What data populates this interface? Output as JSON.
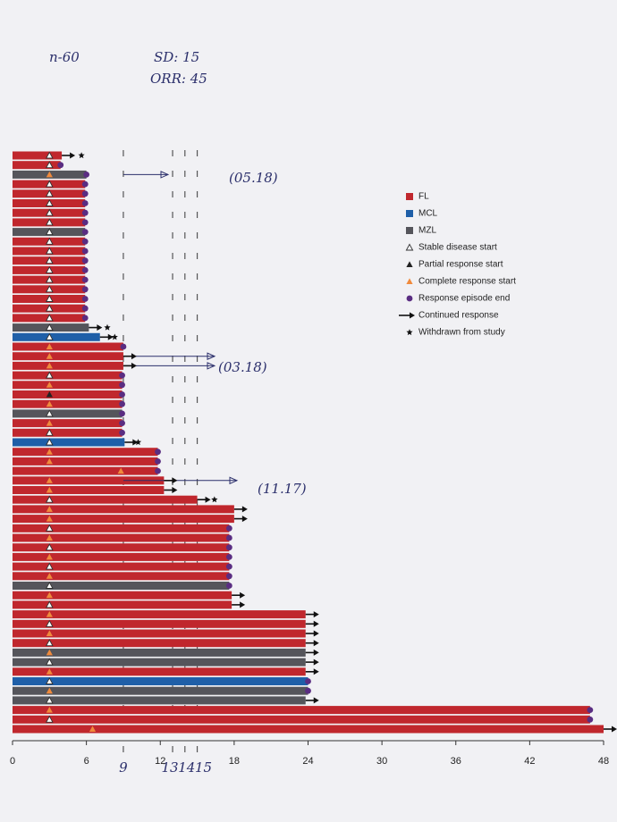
{
  "chart_data": {
    "type": "swimmer",
    "xlim": [
      0,
      48
    ],
    "xticks": [
      0,
      6,
      12,
      18,
      24,
      30,
      36,
      42,
      48
    ],
    "grid": false,
    "legend": "upper right",
    "series": [
      {
        "name": "FL",
        "color": "#c0272d",
        "values": [
          4,
          3.9,
          null,
          5.9,
          5.9,
          5.9,
          5.9,
          5.9,
          null,
          5.9,
          5.9,
          5.9,
          5.9,
          5.9,
          5.9,
          5.9,
          5.9,
          5.9,
          null,
          null,
          9,
          9,
          9,
          8.9,
          8.9,
          8.9,
          8.9,
          null,
          8.9,
          8.9,
          null,
          11.8,
          11.8,
          11.8,
          12.3,
          12.3,
          15,
          18,
          18,
          17.6,
          17.6,
          17.6,
          17.6,
          17.6,
          17.6,
          null,
          17.8,
          17.8,
          23.8,
          23.8,
          23.8,
          23.8,
          null,
          null,
          23.8,
          null,
          null,
          null,
          46.9,
          46.9,
          48
        ]
      },
      {
        "name": "MCL",
        "color": "#1f5fa8",
        "values": [
          null,
          null,
          null,
          null,
          null,
          null,
          null,
          null,
          null,
          null,
          null,
          null,
          null,
          null,
          null,
          null,
          null,
          null,
          null,
          7.1,
          null,
          null,
          null,
          null,
          null,
          null,
          null,
          null,
          null,
          null,
          9.1,
          null,
          null,
          null,
          null,
          null,
          null,
          null,
          null,
          null,
          null,
          null,
          null,
          null,
          null,
          null,
          null,
          null,
          null,
          null,
          null,
          null,
          null,
          null,
          null,
          24,
          null,
          null,
          null,
          null,
          null
        ]
      },
      {
        "name": "MZL",
        "color": "#55555b",
        "values": [
          null,
          null,
          6,
          null,
          null,
          null,
          null,
          null,
          5.9,
          null,
          null,
          null,
          null,
          null,
          null,
          null,
          null,
          null,
          6.2,
          null,
          null,
          null,
          null,
          null,
          null,
          null,
          null,
          8.9,
          null,
          null,
          null,
          null,
          null,
          null,
          null,
          null,
          null,
          null,
          null,
          null,
          null,
          null,
          null,
          null,
          null,
          17.6,
          null,
          null,
          null,
          null,
          null,
          null,
          23.8,
          23.8,
          null,
          null,
          24,
          23.8,
          null,
          null,
          null
        ]
      }
    ],
    "markers": [
      {
        "name": "Stable disease start",
        "symbol": "triangle-open",
        "color": "#ffffff",
        "x": [
          3,
          3,
          null,
          3,
          3,
          3,
          3,
          3,
          3,
          3,
          3,
          3,
          3,
          3,
          3,
          3,
          3,
          3,
          3,
          3,
          null,
          null,
          null,
          3,
          null,
          null,
          null,
          3,
          null,
          3,
          3,
          null,
          null,
          null,
          null,
          null,
          3,
          null,
          null,
          3,
          null,
          3,
          null,
          3,
          null,
          3,
          null,
          3,
          null,
          3,
          null,
          3,
          null,
          3,
          null,
          3,
          null,
          3,
          null,
          3,
          null
        ]
      },
      {
        "name": "Partial response start",
        "symbol": "triangle",
        "color": "#222222",
        "x": [
          null,
          null,
          null,
          null,
          null,
          null,
          null,
          null,
          null,
          null,
          null,
          null,
          null,
          null,
          null,
          null,
          null,
          null,
          null,
          null,
          null,
          null,
          null,
          null,
          null,
          3,
          null,
          null,
          null,
          null,
          null,
          null,
          null,
          null,
          null,
          null,
          null,
          null,
          null,
          null,
          null,
          null,
          null,
          null,
          null,
          null,
          null,
          null,
          null,
          null,
          null,
          null,
          null,
          null,
          null,
          null,
          null,
          null,
          null,
          null,
          null
        ]
      },
      {
        "name": "Complete response start",
        "symbol": "triangle",
        "color": "#f08a3c",
        "x": [
          null,
          null,
          3,
          null,
          null,
          null,
          null,
          null,
          null,
          null,
          null,
          null,
          null,
          null,
          null,
          null,
          null,
          null,
          null,
          null,
          3,
          3,
          3,
          null,
          3,
          null,
          3,
          null,
          3,
          null,
          null,
          3,
          3,
          8.8,
          3,
          3,
          null,
          3,
          3,
          null,
          3,
          null,
          3,
          null,
          3,
          null,
          3,
          null,
          3,
          null,
          3,
          null,
          3,
          null,
          3,
          null,
          3,
          null,
          3,
          null,
          6.5
        ]
      },
      {
        "name": "Response episode end",
        "symbol": "circle",
        "color": "#5a2d82",
        "x": [
          null,
          3.9,
          6,
          5.9,
          5.9,
          5.9,
          5.9,
          5.9,
          5.9,
          5.9,
          5.9,
          5.9,
          5.9,
          5.9,
          5.9,
          5.9,
          5.9,
          5.9,
          null,
          null,
          9,
          null,
          null,
          8.9,
          8.9,
          8.9,
          8.9,
          8.9,
          8.9,
          8.9,
          null,
          11.8,
          11.8,
          11.8,
          null,
          null,
          null,
          null,
          null,
          17.6,
          17.6,
          17.6,
          17.6,
          17.6,
          17.6,
          17.6,
          null,
          null,
          null,
          null,
          null,
          null,
          null,
          null,
          null,
          24,
          24,
          null,
          46.9,
          46.9,
          null
        ]
      },
      {
        "name": "Continued response",
        "symbol": "arrow",
        "color": "#111111",
        "x": [
          4,
          null,
          null,
          null,
          null,
          null,
          null,
          null,
          null,
          null,
          null,
          null,
          null,
          null,
          null,
          null,
          null,
          null,
          6.2,
          7.1,
          null,
          9,
          9,
          null,
          null,
          null,
          null,
          null,
          null,
          null,
          9.1,
          null,
          null,
          null,
          12.3,
          12.3,
          15,
          18,
          18,
          null,
          null,
          null,
          null,
          null,
          null,
          null,
          17.8,
          17.8,
          23.8,
          23.8,
          23.8,
          23.8,
          23.8,
          23.8,
          23.8,
          null,
          null,
          23.8,
          null,
          null,
          48
        ]
      },
      {
        "name": "Withdrawn from study",
        "symbol": "star",
        "color": "#111111",
        "x": [
          5.6,
          null,
          null,
          null,
          null,
          null,
          null,
          null,
          null,
          null,
          null,
          null,
          null,
          null,
          null,
          null,
          null,
          null,
          7.7,
          8.3,
          null,
          null,
          null,
          null,
          null,
          null,
          null,
          null,
          null,
          null,
          10.2,
          null,
          null,
          null,
          null,
          null,
          16.4,
          null,
          null,
          null,
          null,
          null,
          null,
          null,
          null,
          null,
          null,
          null,
          null,
          null,
          null,
          null,
          null,
          null,
          null,
          null,
          null,
          null,
          null,
          null,
          null
        ]
      }
    ],
    "handwritten_ticks": [
      9,
      13,
      14,
      15
    ],
    "annotations": [
      "n-60",
      "SD: 15",
      "ORR: 45",
      "(05.18)",
      "(03.18)",
      "(11.17)"
    ]
  }
}
